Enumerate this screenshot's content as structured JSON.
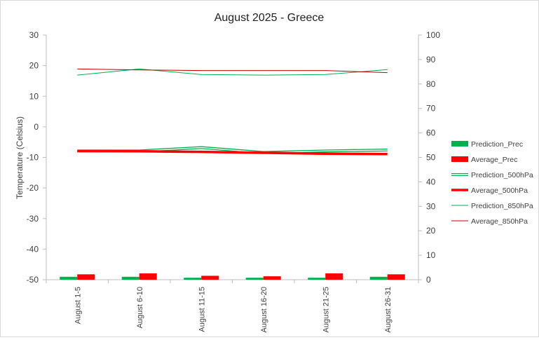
{
  "chart_data": {
    "type": "line",
    "title": "August 2025 - Greece",
    "ylabel": "Temperature (Celsius)",
    "ylabel_right": "",
    "xlabel": "",
    "ylim": [
      -50,
      30
    ],
    "ylim_right": [
      0,
      100
    ],
    "yticks": [
      "30",
      "20",
      "10",
      "0",
      "-10",
      "-20",
      "-30",
      "-40",
      "-50"
    ],
    "yticks_right": [
      "100",
      "90",
      "80",
      "70",
      "60",
      "50",
      "40",
      "30",
      "20",
      "10",
      "0"
    ],
    "categories": [
      "August 1-5",
      "August 6-10",
      "August 11-15",
      "August 16-20",
      "August 21-25",
      "August 26-31"
    ],
    "grid": false,
    "legend_position": "right",
    "series": [
      {
        "name": "Prediction_Prec",
        "kind": "bar",
        "axis": "right",
        "color": "#00b050",
        "values": [
          1.2,
          1.2,
          0.8,
          0.8,
          0.8,
          1.2
        ]
      },
      {
        "name": "Average_Prec",
        "kind": "bar",
        "axis": "right",
        "color": "#ff0000",
        "values": [
          2.2,
          2.6,
          1.6,
          1.4,
          2.6,
          2.2
        ]
      },
      {
        "name": "Prediction_500hPa",
        "kind": "line",
        "style": "double",
        "axis": "left",
        "color": "#00b050",
        "values": [
          -7.9,
          -7.9,
          -6.8,
          -8.4,
          -7.9,
          -7.6
        ]
      },
      {
        "name": "Average_500hPa",
        "kind": "line",
        "style": "thick",
        "axis": "left",
        "color": "#ff0000",
        "values": [
          -7.9,
          -8.0,
          -8.2,
          -8.5,
          -8.8,
          -8.9
        ]
      },
      {
        "name": "Prediction_850hPa",
        "kind": "line",
        "style": "thin",
        "axis": "left",
        "color": "#00b050",
        "values": [
          16.9,
          18.9,
          17.1,
          16.9,
          17.1,
          18.7
        ]
      },
      {
        "name": "Average_850hPa",
        "kind": "line",
        "style": "thin",
        "axis": "left",
        "color": "#c00000",
        "values": [
          18.9,
          18.6,
          18.4,
          18.4,
          18.4,
          17.7
        ]
      }
    ]
  }
}
